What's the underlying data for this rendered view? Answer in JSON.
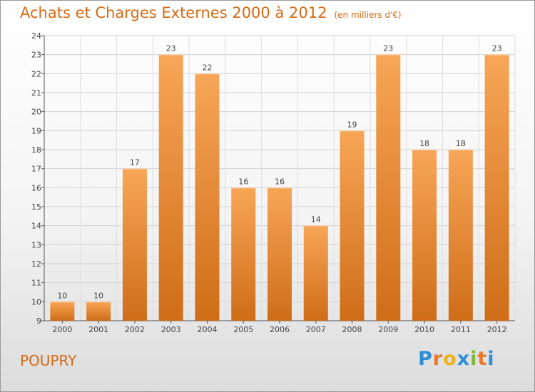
{
  "header": {
    "title": "Achats et Charges Externes 2000 à 2012",
    "subtitle": "(en milliers d'€)"
  },
  "footer": {
    "commune": "POUPRY",
    "brand": "Proxiti"
  },
  "colors": {
    "accent": "#d66a14",
    "bar_light": "#f7a657",
    "bar_dark": "#cf6d18",
    "brand_letters": [
      "#2e8fd6",
      "#e8792a",
      "#f0b21c",
      "#2e8fd6",
      "#7cb83a",
      "#e8792a",
      "#2e8fd6"
    ]
  },
  "chart_data": {
    "type": "bar",
    "categories": [
      "2000",
      "2001",
      "2002",
      "2003",
      "2004",
      "2005",
      "2006",
      "2007",
      "2008",
      "2009",
      "2010",
      "2011",
      "2012"
    ],
    "values": [
      10,
      10,
      17,
      23,
      22,
      16,
      16,
      14,
      19,
      23,
      18,
      18,
      23
    ],
    "title": "Achats et Charges Externes 2000 à 2012",
    "subtitle": "(en milliers d'€)",
    "xlabel": "",
    "ylabel": "",
    "ylim": [
      9,
      24
    ],
    "yticks": [
      9,
      10,
      11,
      12,
      13,
      14,
      15,
      16,
      17,
      18,
      19,
      20,
      21,
      22,
      23,
      24
    ],
    "grid": true,
    "data_labels": true
  }
}
